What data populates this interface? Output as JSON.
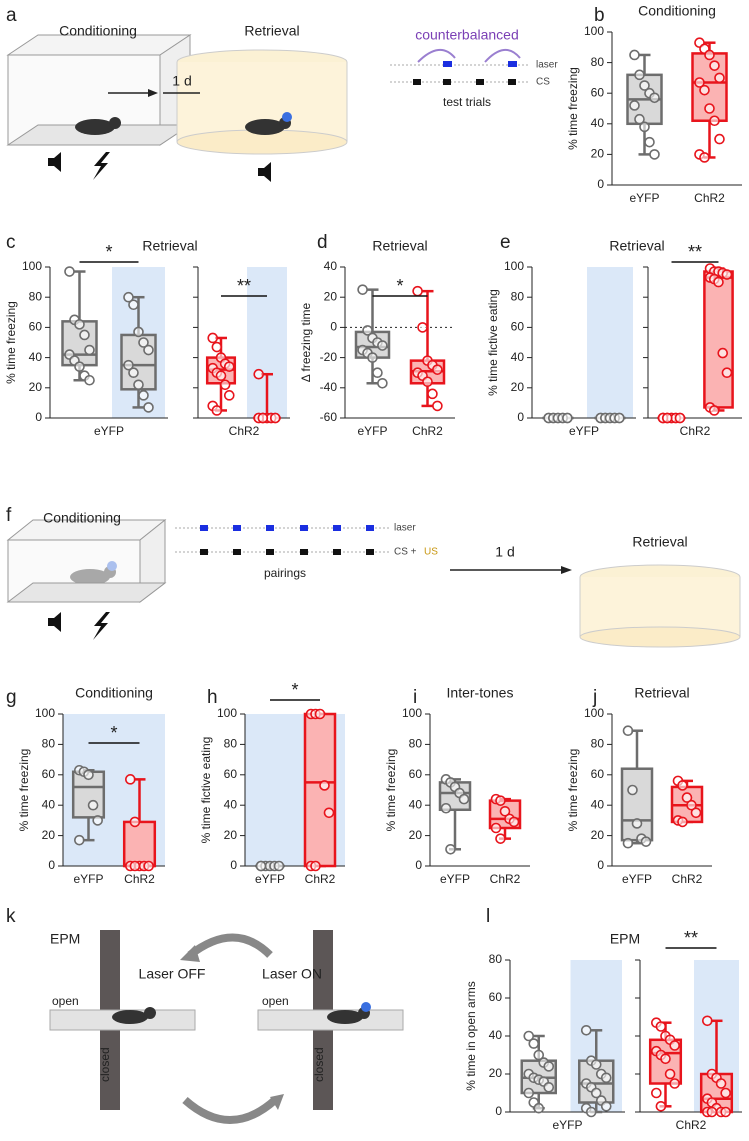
{
  "diagrams": {
    "a": {
      "panel": "a",
      "conditioning": "Conditioning",
      "arrow_label": "1 d",
      "retrieval": "Retrieval",
      "protocol_title": "counterbalanced",
      "laser": "laser",
      "cs": "CS",
      "trials": "test trials"
    },
    "f": {
      "panel": "f",
      "conditioning": "Conditioning",
      "laser": "laser",
      "cs": "CS +",
      "us": "US",
      "pairings": "pairings",
      "arrow_label": "1 d",
      "retrieval": "Retrieval"
    },
    "k": {
      "panel": "k",
      "title": "EPM",
      "laser_off": "Laser OFF",
      "laser_on": "Laser ON",
      "open_left": "open",
      "closed_left": "closed",
      "open_right": "open",
      "closed_right": "closed"
    }
  },
  "chart_data": [
    {
      "type": "box",
      "panel": "b",
      "title": "Conditioning",
      "ylabel": "% time freezing",
      "ylim": [
        0,
        100
      ],
      "yticks": [
        0,
        20,
        40,
        60,
        80,
        100
      ],
      "significance": null,
      "groups": [
        {
          "name": "eYFP",
          "color": "#6d6d6d",
          "fill": "#d9d9d9",
          "min": 20,
          "q1": 40,
          "median": 56,
          "q3": 72,
          "max": 85,
          "points": [
            85,
            72,
            65,
            60,
            57,
            52,
            43,
            38,
            28,
            20
          ]
        },
        {
          "name": "ChR2",
          "color": "#e8141c",
          "fill": "#fbb3b3",
          "min": 18,
          "q1": 42,
          "median": 67,
          "q3": 86,
          "max": 93,
          "points": [
            93,
            89,
            85,
            78,
            70,
            67,
            62,
            50,
            42,
            30,
            20,
            18
          ]
        }
      ]
    },
    {
      "type": "box",
      "panel": "c",
      "title": "Retrieval",
      "ylabel": "% time freezing",
      "xlabel": "eYFP",
      "ylim": [
        0,
        100
      ],
      "yticks": [
        0,
        20,
        40,
        60,
        80,
        100
      ],
      "significance": "*",
      "groups": [
        {
          "color": "#6d6d6d",
          "fill": "#d9d9d9",
          "min": 25,
          "q1": 35,
          "median": 42,
          "q3": 64,
          "max": 97,
          "points": [
            97,
            65,
            62,
            55,
            45,
            42,
            38,
            34,
            28,
            25
          ]
        },
        {
          "color": "#6d6d6d",
          "fill": "#d9d9d9",
          "shaded": true,
          "min": 7,
          "q1": 19,
          "median": 35,
          "q3": 55,
          "max": 80,
          "points": [
            80,
            75,
            57,
            50,
            45,
            35,
            30,
            22,
            15,
            7
          ]
        }
      ]
    },
    {
      "type": "box",
      "xlabel": "ChR2",
      "ylim": [
        0,
        100
      ],
      "yticks": [
        0,
        20,
        40,
        60,
        80,
        100
      ],
      "show_tick_labels": false,
      "significance": "**",
      "groups": [
        {
          "color": "#e8141c",
          "fill": "#fbb3b3",
          "min": 5,
          "q1": 23,
          "median": 32,
          "q3": 40,
          "max": 53,
          "points": [
            53,
            47,
            40,
            36,
            34,
            33,
            30,
            28,
            22,
            15,
            8,
            5
          ]
        },
        {
          "color": "#e8141c",
          "fill": "#fbb3b3",
          "shaded": true,
          "min": 0,
          "q1": 0,
          "median": 0,
          "q3": 0,
          "max": 29,
          "points": [
            29,
            0,
            0,
            0,
            0,
            0,
            0,
            0,
            0,
            0,
            0,
            0
          ]
        }
      ]
    },
    {
      "type": "box",
      "panel": "d",
      "title": "Retrieval",
      "ylabel": "Δ freezing time",
      "ylim": [
        -60,
        40
      ],
      "yticks": [
        -60,
        -40,
        -20,
        0,
        20,
        40
      ],
      "reference_line": 0,
      "significance": "*",
      "groups": [
        {
          "name": "eYFP",
          "color": "#6d6d6d",
          "fill": "#d9d9d9",
          "min": -37,
          "q1": -20,
          "median": -13,
          "q3": -3,
          "max": 25,
          "points": [
            25,
            -2,
            -7,
            -10,
            -12,
            -15,
            -17,
            -20,
            -30,
            -37
          ]
        },
        {
          "name": "ChR2",
          "color": "#e8141c",
          "fill": "#fbb3b3",
          "min": -52,
          "q1": -37,
          "median": -29,
          "q3": -22,
          "max": 24,
          "points": [
            24,
            0,
            -22,
            -25,
            -28,
            -30,
            -32,
            -36,
            -44,
            -52
          ]
        }
      ]
    },
    {
      "type": "box",
      "panel": "e",
      "title": "Retrieval",
      "ylabel": "% time fictive eating",
      "xlabel": "eYFP",
      "ylim": [
        0,
        100
      ],
      "yticks": [
        0,
        20,
        40,
        60,
        80,
        100
      ],
      "significance": null,
      "groups": [
        {
          "color": "#6d6d6d",
          "fill": "#d9d9d9",
          "min": 0,
          "q1": 0,
          "median": 0,
          "q3": 0,
          "max": 0,
          "points": [
            0,
            0,
            0,
            0,
            0,
            0,
            0,
            0,
            0,
            0
          ]
        },
        {
          "color": "#6d6d6d",
          "fill": "#d9d9d9",
          "shaded": true,
          "min": 0,
          "q1": 0,
          "median": 0,
          "q3": 0,
          "max": 0,
          "points": [
            0,
            0,
            0,
            0,
            0,
            0,
            0,
            0,
            0,
            0
          ]
        }
      ]
    },
    {
      "type": "box",
      "xlabel": "ChR2",
      "ylim": [
        0,
        100
      ],
      "yticks": [
        0,
        20,
        40,
        60,
        80,
        100
      ],
      "show_tick_labels": false,
      "significance": "**",
      "groups": [
        {
          "color": "#e8141c",
          "fill": "#fbb3b3",
          "min": 0,
          "q1": 0,
          "median": 0,
          "q3": 0,
          "max": 0,
          "points": [
            0,
            0,
            0,
            0,
            0,
            0,
            0,
            0,
            0,
            0,
            0,
            0
          ]
        },
        {
          "color": "#e8141c",
          "fill": "#fbb3b3",
          "min": 5,
          "q1": 7,
          "median": 93,
          "q3": 97,
          "max": 99,
          "points": [
            99,
            97,
            97,
            96,
            95,
            93,
            92,
            90,
            43,
            30,
            7,
            5
          ]
        }
      ]
    },
    {
      "type": "box",
      "panel": "g",
      "title": "Conditioning",
      "ylabel": "% time freezing",
      "ylim": [
        0,
        100
      ],
      "yticks": [
        0,
        20,
        40,
        60,
        80,
        100
      ],
      "shaded_background": true,
      "significance": "*",
      "groups": [
        {
          "name": "eYFP",
          "color": "#6d6d6d",
          "fill": "#d9d9d9",
          "min": 17,
          "q1": 32,
          "median": 52,
          "q3": 62,
          "max": 63,
          "points": [
            63,
            62,
            60,
            40,
            30,
            17
          ]
        },
        {
          "name": "ChR2",
          "color": "#e8141c",
          "fill": "#fbb3b3",
          "min": 0,
          "q1": 0,
          "median": 0,
          "q3": 29,
          "max": 57,
          "points": [
            57,
            29,
            0,
            0,
            0,
            0,
            0
          ]
        }
      ]
    },
    {
      "type": "box",
      "panel": "h",
      "ylabel": "% time fictive eating",
      "ylim": [
        0,
        100
      ],
      "yticks": [
        0,
        20,
        40,
        60,
        80,
        100
      ],
      "shaded_background": true,
      "significance": "*",
      "groups": [
        {
          "name": "eYFP",
          "color": "#6d6d6d",
          "fill": "#d9d9d9",
          "min": 0,
          "q1": 0,
          "median": 0,
          "q3": 0,
          "max": 0,
          "points": [
            0,
            0,
            0,
            0,
            0,
            0
          ]
        },
        {
          "name": "ChR2",
          "color": "#e8141c",
          "fill": "#fbb3b3",
          "min": 0,
          "q1": 0,
          "median": 55,
          "q3": 100,
          "max": 100,
          "points": [
            100,
            100,
            100,
            53,
            35,
            0,
            0
          ]
        }
      ]
    },
    {
      "type": "box",
      "panel": "i",
      "title": "Inter-tones",
      "ylabel": "% time freezing",
      "ylim": [
        0,
        100
      ],
      "yticks": [
        0,
        20,
        40,
        60,
        80,
        100
      ],
      "significance": null,
      "groups": [
        {
          "name": "eYFP",
          "color": "#6d6d6d",
          "fill": "#d9d9d9",
          "min": 11,
          "q1": 37,
          "median": 48,
          "q3": 55,
          "max": 57,
          "points": [
            57,
            55,
            52,
            48,
            44,
            38,
            11
          ]
        },
        {
          "name": "ChR2",
          "color": "#e8141c",
          "fill": "#fbb3b3",
          "min": 18,
          "q1": 25,
          "median": 31,
          "q3": 43,
          "max": 44,
          "points": [
            44,
            43,
            36,
            31,
            29,
            25,
            18
          ]
        }
      ]
    },
    {
      "type": "box",
      "panel": "j",
      "title": "Retrieval",
      "ylabel": "% time freezing",
      "ylim": [
        0,
        100
      ],
      "yticks": [
        0,
        20,
        40,
        60,
        80,
        100
      ],
      "significance": null,
      "groups": [
        {
          "name": "eYFP",
          "color": "#6d6d6d",
          "fill": "#d9d9d9",
          "min": 15,
          "q1": 17,
          "median": 30,
          "q3": 64,
          "max": 89,
          "points": [
            89,
            50,
            28,
            18,
            16,
            15
          ]
        },
        {
          "name": "ChR2",
          "color": "#e8141c",
          "fill": "#fbb3b3",
          "min": 29,
          "q1": 29,
          "median": 40,
          "q3": 52,
          "max": 56,
          "points": [
            56,
            53,
            45,
            40,
            35,
            30,
            29
          ]
        }
      ]
    },
    {
      "type": "box",
      "panel": "l",
      "title": "EPM",
      "ylabel": "% time in open arms",
      "xlabel": "eYFP",
      "ylim": [
        0,
        80
      ],
      "yticks": [
        0,
        20,
        40,
        60,
        80
      ],
      "significance": null,
      "groups": [
        {
          "color": "#6d6d6d",
          "fill": "#d9d9d9",
          "min": 2,
          "q1": 10,
          "median": 18,
          "q3": 27,
          "max": 40,
          "points": [
            40,
            36,
            30,
            26,
            24,
            20,
            18,
            17,
            16,
            13,
            10,
            5,
            2
          ]
        },
        {
          "color": "#6d6d6d",
          "fill": "#d9d9d9",
          "shaded": true,
          "min": 0,
          "q1": 5,
          "median": 15,
          "q3": 27,
          "max": 43,
          "points": [
            43,
            27,
            25,
            20,
            18,
            15,
            13,
            10,
            6,
            3,
            2,
            0
          ]
        }
      ]
    },
    {
      "type": "box",
      "xlabel": "ChR2",
      "ylim": [
        0,
        80
      ],
      "yticks": [
        0,
        20,
        40,
        60,
        80
      ],
      "show_tick_labels": false,
      "significance": "**",
      "groups": [
        {
          "color": "#e8141c",
          "fill": "#fbb3b3",
          "min": 3,
          "q1": 15,
          "median": 31,
          "q3": 38,
          "max": 47,
          "points": [
            47,
            45,
            40,
            38,
            35,
            32,
            30,
            28,
            20,
            15,
            10,
            3
          ]
        },
        {
          "color": "#e8141c",
          "fill": "#fbb3b3",
          "shaded": true,
          "min": 0,
          "q1": 0,
          "median": 7,
          "q3": 20,
          "max": 48,
          "points": [
            48,
            20,
            18,
            15,
            10,
            7,
            5,
            2,
            0,
            0,
            0,
            0
          ]
        }
      ]
    }
  ]
}
